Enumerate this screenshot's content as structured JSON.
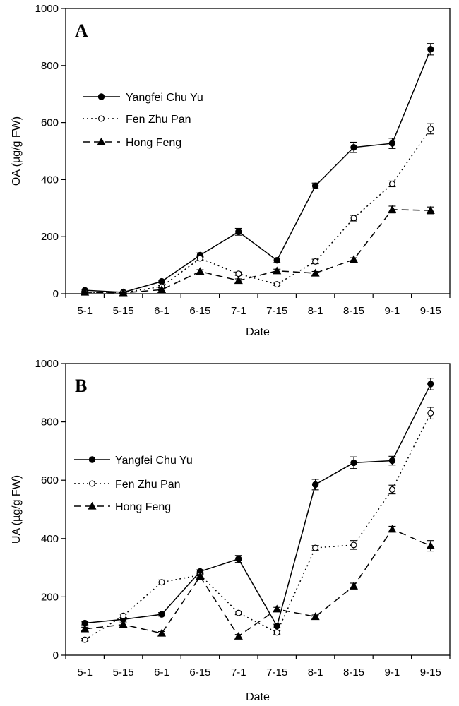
{
  "figure": {
    "background": "#ffffff",
    "ink": "#000000"
  },
  "chart_data": [
    {
      "type": "line",
      "panel_label": "A",
      "title": "",
      "xlabel": "Date",
      "ylabel": "OA (µg/g FW)",
      "categories": [
        "5-1",
        "5-15",
        "6-1",
        "6-15",
        "7-1",
        "7-15",
        "8-1",
        "8-15",
        "9-1",
        "9-15"
      ],
      "ylim": [
        0,
        1000
      ],
      "yticks": [
        "0",
        "200",
        "400",
        "600",
        "800",
        "1000"
      ],
      "grid": false,
      "legend_position": "upper-left",
      "series": [
        {
          "name": "Yangfei Chu Yu",
          "style": "solid",
          "marker": "filled-circle",
          "values": [
            12,
            5,
            43,
            135,
            217,
            117,
            378,
            513,
            527,
            857
          ],
          "errors": [
            4,
            2,
            5,
            8,
            12,
            8,
            10,
            18,
            18,
            20
          ]
        },
        {
          "name": "Fen Zhu Pan",
          "style": "dotted",
          "marker": "open-circle",
          "values": [
            5,
            4,
            25,
            124,
            70,
            33,
            113,
            265,
            385,
            578
          ],
          "errors": [
            2,
            2,
            4,
            6,
            6,
            4,
            8,
            10,
            10,
            18
          ]
        },
        {
          "name": "Hong Feng",
          "style": "dashed",
          "marker": "filled-triangle",
          "values": [
            5,
            3,
            14,
            78,
            46,
            80,
            72,
            120,
            295,
            292
          ],
          "errors": [
            2,
            2,
            3,
            6,
            6,
            6,
            6,
            6,
            12,
            12
          ]
        }
      ]
    },
    {
      "type": "line",
      "panel_label": "B",
      "title": "",
      "xlabel": "Date",
      "ylabel": "UA (µg/g FW)",
      "categories": [
        "5-1",
        "5-15",
        "6-1",
        "6-15",
        "7-1",
        "7-15",
        "8-1",
        "8-15",
        "9-1",
        "9-15"
      ],
      "ylim": [
        0,
        1000
      ],
      "yticks": [
        "0",
        "200",
        "400",
        "600",
        "800",
        "1000"
      ],
      "grid": false,
      "legend_position": "upper-left",
      "series": [
        {
          "name": "Yangfei Chu Yu",
          "style": "solid",
          "marker": "filled-circle",
          "values": [
            110,
            123,
            140,
            287,
            330,
            100,
            585,
            660,
            667,
            930
          ],
          "errors": [
            6,
            6,
            6,
            6,
            12,
            6,
            18,
            20,
            15,
            20
          ]
        },
        {
          "name": "Fen Zhu Pan",
          "style": "dotted",
          "marker": "open-circle",
          "values": [
            53,
            135,
            250,
            275,
            145,
            78,
            368,
            378,
            568,
            830
          ],
          "errors": [
            4,
            6,
            8,
            8,
            6,
            6,
            8,
            15,
            15,
            20
          ]
        },
        {
          "name": "Hong Feng",
          "style": "dashed",
          "marker": "filled-triangle",
          "values": [
            90,
            105,
            75,
            270,
            65,
            158,
            132,
            237,
            432,
            375
          ],
          "errors": [
            6,
            6,
            6,
            8,
            6,
            6,
            6,
            10,
            10,
            18
          ]
        }
      ]
    }
  ]
}
